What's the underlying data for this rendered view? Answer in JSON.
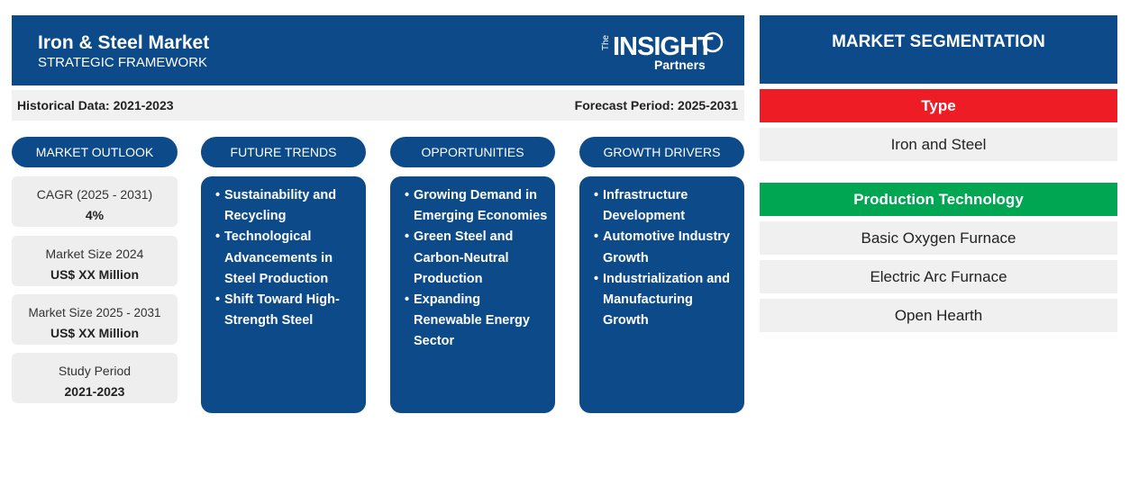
{
  "header": {
    "title": "Iron & Steel Market",
    "subtitle": "STRATEGIC FRAMEWORK",
    "logo": {
      "the": "The",
      "insight": "INSIGHT",
      "partners": "Partners"
    }
  },
  "period_bar": {
    "historical": "Historical Data: 2021-2023",
    "forecast": "Forecast Period: 2025-2031"
  },
  "outlook": {
    "title": "MARKET OUTLOOK",
    "cards": [
      {
        "label": "CAGR (2025 - 2031)",
        "value": "4%"
      },
      {
        "label": "Market Size 2024",
        "value": "US$ XX Million"
      },
      {
        "label": "Market Size 2025 - 2031",
        "value": "US$ XX Million"
      },
      {
        "label": "Study Period",
        "value": "2021-2023"
      }
    ]
  },
  "columns": [
    {
      "title": "FUTURE TRENDS",
      "items": [
        "Sustainability and Recycling",
        "Technological Advancements in Steel Production",
        "Shift Toward High-Strength Steel"
      ]
    },
    {
      "title": "OPPORTUNITIES",
      "items": [
        "Growing Demand in Emerging Economies",
        "Green Steel and Carbon-Neutral Production",
        "Expanding Renewable Energy Sector"
      ]
    },
    {
      "title": "GROWTH DRIVERS",
      "items": [
        "Infrastructure Development",
        "Automotive Industry Growth",
        "Industrialization and Manufacturing Growth"
      ]
    }
  ],
  "segmentation": {
    "title": "MARKET SEGMENTATION",
    "groups": [
      {
        "name": "Type",
        "items": [
          "Iron and Steel"
        ]
      },
      {
        "name": "Production Technology",
        "items": [
          "Basic Oxygen Furnace",
          "Electric Arc Furnace",
          "Open Hearth"
        ]
      }
    ]
  }
}
